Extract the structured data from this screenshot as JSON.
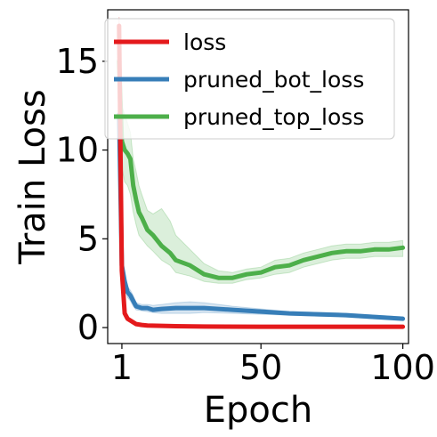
{
  "chart_data": {
    "type": "line",
    "xlabel": "Epoch",
    "ylabel": "Train Loss",
    "xlim": [
      -4,
      102
    ],
    "ylim": [
      -0.9,
      17.9
    ],
    "xticks": [
      1,
      50,
      100
    ],
    "yticks": [
      0,
      5,
      10,
      15
    ],
    "grid": false,
    "legend_position": "top-right",
    "series": [
      {
        "name": "loss",
        "color": "#e41a1c",
        "x": [
          0,
          1,
          2,
          3,
          4,
          5,
          6,
          8,
          10,
          15,
          20,
          30,
          50,
          70,
          100
        ],
        "y": [
          17.0,
          3.2,
          0.8,
          0.5,
          0.4,
          0.3,
          0.2,
          0.15,
          0.12,
          0.1,
          0.08,
          0.06,
          0.05,
          0.05,
          0.05
        ],
        "band_low": [
          13.5,
          2.6,
          0.6,
          0.4,
          0.3,
          0.25,
          0.15,
          0.12,
          0.1,
          0.08,
          0.06,
          0.05,
          0.04,
          0.04,
          0.04
        ],
        "band_high": [
          17.5,
          3.8,
          1.0,
          0.6,
          0.5,
          0.35,
          0.25,
          0.18,
          0.14,
          0.12,
          0.1,
          0.08,
          0.06,
          0.06,
          0.06
        ]
      },
      {
        "name": "pruned_bot_loss",
        "color": "#377eb8",
        "x": [
          0,
          1,
          2,
          3,
          4,
          5,
          6,
          8,
          10,
          12,
          15,
          20,
          25,
          30,
          40,
          50,
          60,
          70,
          80,
          90,
          100
        ],
        "y": [
          12.0,
          3.5,
          2.6,
          2.0,
          1.8,
          1.5,
          1.2,
          1.1,
          1.1,
          1.0,
          1.05,
          1.1,
          1.1,
          1.1,
          1.0,
          0.9,
          0.8,
          0.75,
          0.7,
          0.6,
          0.5
        ],
        "band_low": [
          10.5,
          3.0,
          2.2,
          1.7,
          1.5,
          1.2,
          1.0,
          0.95,
          0.9,
          0.85,
          0.8,
          0.8,
          0.8,
          0.85,
          0.8,
          0.75,
          0.7,
          0.65,
          0.6,
          0.5,
          0.45
        ],
        "band_high": [
          13.5,
          4.0,
          3.0,
          2.3,
          2.1,
          1.8,
          1.4,
          1.3,
          1.3,
          1.25,
          1.3,
          1.4,
          1.45,
          1.4,
          1.2,
          1.05,
          0.9,
          0.85,
          0.8,
          0.7,
          0.6
        ]
      },
      {
        "name": "pruned_top_loss",
        "color": "#4daf4a",
        "x": [
          0,
          1,
          2,
          3,
          4,
          5,
          6,
          7,
          8,
          10,
          12,
          15,
          18,
          20,
          25,
          30,
          35,
          40,
          45,
          50,
          55,
          60,
          65,
          70,
          75,
          80,
          85,
          90,
          95,
          100
        ],
        "y": [
          15.0,
          10.5,
          10.0,
          9.8,
          9.5,
          8.0,
          7.2,
          6.5,
          6.2,
          5.5,
          5.2,
          4.6,
          4.2,
          3.8,
          3.5,
          3.0,
          2.8,
          2.8,
          3.0,
          3.1,
          3.4,
          3.5,
          3.8,
          4.0,
          4.2,
          4.3,
          4.3,
          4.4,
          4.4,
          4.5
        ],
        "band_low": [
          12.5,
          9.0,
          8.2,
          8.0,
          7.5,
          6.5,
          5.8,
          5.2,
          5.0,
          4.6,
          4.3,
          3.8,
          3.5,
          3.1,
          2.9,
          2.6,
          2.5,
          2.5,
          2.7,
          2.8,
          3.0,
          3.1,
          3.4,
          3.6,
          3.8,
          3.9,
          3.9,
          4.0,
          4.0,
          4.0
        ],
        "band_high": [
          15.5,
          12.5,
          12.0,
          11.5,
          11.0,
          9.5,
          8.8,
          8.0,
          7.5,
          6.6,
          6.4,
          6.7,
          6.0,
          5.2,
          4.4,
          3.6,
          3.2,
          3.1,
          3.3,
          3.4,
          3.8,
          3.9,
          4.2,
          4.4,
          4.6,
          4.7,
          4.7,
          4.8,
          4.8,
          4.9
        ]
      }
    ]
  }
}
